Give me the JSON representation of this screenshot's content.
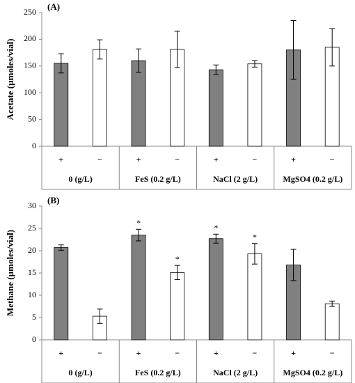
{
  "chart_data": [
    {
      "type": "bar",
      "title": "(A)",
      "y_label": "Acetate (µmoles/vial)",
      "categories": [
        "0 (g/L)",
        "FeS (0.2 g/L)",
        "NaCl (2 g/L)",
        "MgSO4 (0.2 g/L)"
      ],
      "series": [
        {
          "name": "+",
          "color": "#808080",
          "values": [
            155,
            160,
            143,
            180
          ],
          "errors": [
            18,
            22,
            9,
            55
          ]
        },
        {
          "name": "−",
          "color": "#ffffff",
          "values": [
            181,
            181,
            154,
            185
          ],
          "errors": [
            18,
            34,
            6,
            35
          ]
        }
      ],
      "ylim": [
        0,
        250
      ],
      "yticks": [
        0,
        50,
        100,
        150,
        200,
        250
      ]
    },
    {
      "type": "bar",
      "title": "(B)",
      "y_label": "Methane (µmoles/vial)",
      "categories": [
        "0 (g/L)",
        "FeS (0.2 g/L)",
        "NaCl (2 g/L)",
        "MgSO4 (0.2 g/L)"
      ],
      "series": [
        {
          "name": "+",
          "color": "#808080",
          "values": [
            20.7,
            23.5,
            22.7,
            16.8
          ],
          "errors": [
            0.6,
            1.3,
            1.0,
            3.5
          ],
          "annotations": [
            null,
            "*",
            "*",
            null
          ]
        },
        {
          "name": "−",
          "color": "#ffffff",
          "values": [
            5.3,
            15.1,
            19.3,
            8.1
          ],
          "errors": [
            1.6,
            1.6,
            2.3,
            0.6
          ],
          "annotations": [
            null,
            "*",
            "*",
            null
          ]
        }
      ],
      "ylim": [
        0,
        30
      ],
      "yticks": [
        0,
        5,
        10,
        15,
        20,
        25,
        30
      ]
    }
  ]
}
